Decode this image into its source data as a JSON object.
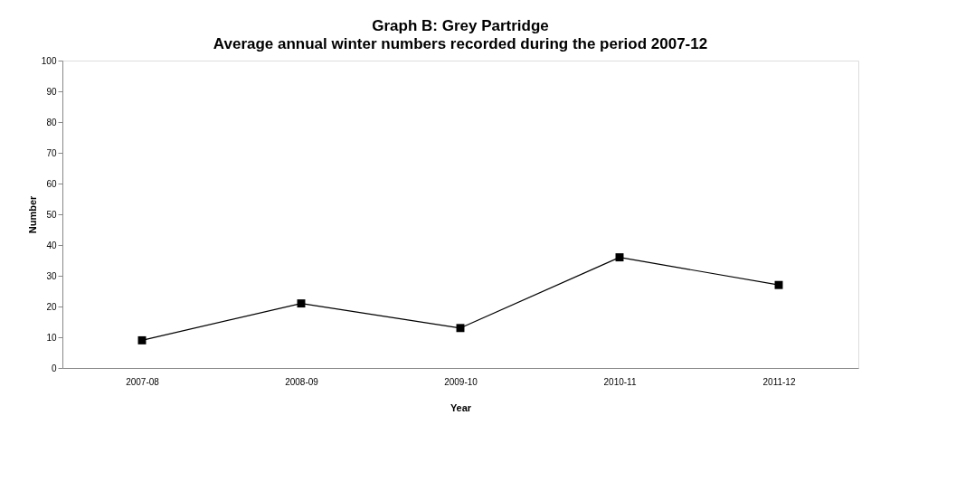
{
  "chart_data": {
    "type": "line",
    "title": "Graph B: Grey Partridge",
    "subtitle": "Average annual winter numbers recorded during the period 2007-12",
    "xlabel": "Year",
    "ylabel": "Number",
    "categories": [
      "2007-08",
      "2008-09",
      "2009-10",
      "2010-11",
      "2011-12"
    ],
    "series": [
      {
        "color": "#000000",
        "values": [
          9,
          21,
          13,
          36,
          27
        ]
      }
    ],
    "ylim": [
      0,
      100
    ],
    "yticks": [
      0,
      10,
      20,
      30,
      40,
      50,
      60,
      70,
      80,
      90,
      100
    ],
    "grid": false,
    "legend": false,
    "marker": "square",
    "line_style": "solid"
  }
}
